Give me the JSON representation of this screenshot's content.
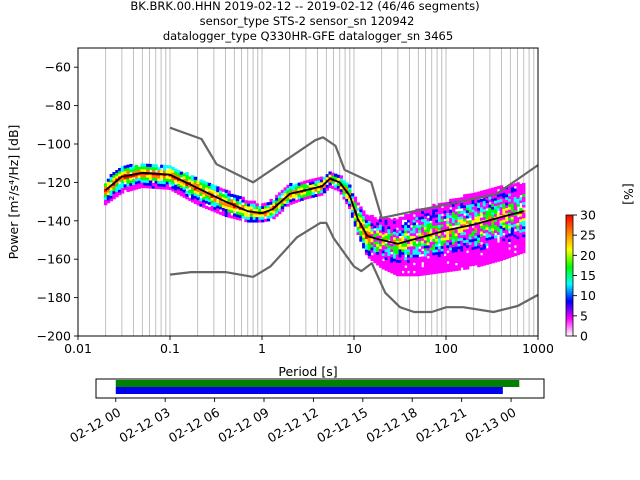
{
  "title": {
    "line1": "BK.BRK.00.HHN   2019-02-12 -- 2019-02-12  (46/46 segments)",
    "line2": "sensor_type STS-2 sensor_sn 120942",
    "line3": "datalogger_type Q330HR-GFE datalogger_sn 3465"
  },
  "chart_data": [
    {
      "type": "heatmap",
      "xscale": "log",
      "xlabel": "Period [s]",
      "ylabel": "Power [m²/s⁴/Hz] [dB]",
      "xlim": [
        0.01,
        1000
      ],
      "ylim": [
        -200,
        -50
      ],
      "xticks": [
        {
          "v": 0.01,
          "label": "0.01"
        },
        {
          "v": 0.1,
          "label": "0.1"
        },
        {
          "v": 1,
          "label": "1"
        },
        {
          "v": 10,
          "label": "10"
        },
        {
          "v": 100,
          "label": "100"
        },
        {
          "v": 1000,
          "label": "1000"
        }
      ],
      "yticks": [
        {
          "v": -60,
          "label": "−60"
        },
        {
          "v": -80,
          "label": "−80"
        },
        {
          "v": -100,
          "label": "−100"
        },
        {
          "v": -120,
          "label": "−120"
        },
        {
          "v": -140,
          "label": "−140"
        },
        {
          "v": -160,
          "label": "−160"
        },
        {
          "v": -180,
          "label": "−180"
        },
        {
          "v": -200,
          "label": "−200"
        }
      ],
      "grid": "vertical-log",
      "colorbar": {
        "label": "[%]",
        "range": [
          0,
          30
        ],
        "ticks": [
          "0",
          "5",
          "10",
          "15",
          "20",
          "25",
          "30"
        ],
        "colors": [
          "#ffffff",
          "#ff00ff",
          "#0000ff",
          "#00ffff",
          "#00ff00",
          "#ffff00",
          "#ff8000",
          "#ff0000"
        ]
      },
      "series": [
        {
          "role": "noise-model-high",
          "color": "#666666",
          "x": [
            0.1,
            0.22,
            0.32,
            0.8,
            3.8,
            4.6,
            6.3,
            7.9,
            15.4,
            20,
            354.8,
            1000
          ],
          "y": [
            -91.5,
            -97.4,
            -110.5,
            -120,
            -98,
            -96.5,
            -101,
            -113.5,
            -120,
            -138.5,
            -126,
            -111
          ]
        },
        {
          "role": "noise-model-low",
          "color": "#666666",
          "x": [
            0.1,
            0.17,
            0.4,
            0.8,
            1.24,
            2.4,
            4.3,
            5,
            6,
            10,
            12,
            15.6,
            21.9,
            31.6,
            45,
            70,
            101,
            154,
            328,
            600,
            1000
          ],
          "y": [
            -168,
            -166.7,
            -166.7,
            -169.2,
            -163.7,
            -148.6,
            -141.1,
            -141.1,
            -149,
            -163.8,
            -166.2,
            -162.1,
            -177.5,
            -185,
            -187.5,
            -187.5,
            -185,
            -185,
            -187.5,
            -184.4,
            -178.6
          ]
        },
        {
          "role": "mode",
          "color": "#000000",
          "x": [
            0.02,
            0.03,
            0.05,
            0.1,
            0.2,
            0.4,
            0.7,
            1.0,
            1.3,
            2,
            3,
            4.5,
            5.5,
            7,
            9,
            11,
            14,
            20,
            30,
            50,
            100,
            200,
            400,
            700
          ],
          "y": [
            -124,
            -117,
            -115,
            -116,
            -123,
            -130,
            -135,
            -136,
            -134,
            -126,
            -124,
            -122,
            -118,
            -120,
            -127,
            -139,
            -148,
            -150,
            -152,
            -149,
            -145,
            -142,
            -138,
            -135
          ]
        }
      ],
      "density_band": {
        "x": [
          0.02,
          0.03,
          0.05,
          0.1,
          0.2,
          0.4,
          0.7,
          1.0,
          1.3,
          2,
          3,
          4.5,
          5.5,
          7,
          9,
          11,
          14,
          20,
          30,
          50,
          100,
          200,
          400,
          700
        ],
        "upper": [
          -119,
          -111,
          -110,
          -111,
          -118,
          -124,
          -129,
          -131,
          -129,
          -121,
          -119,
          -117,
          -115,
          -116,
          -121,
          -130,
          -137,
          -138,
          -139,
          -134,
          -130,
          -125,
          -122,
          -120
        ],
        "lower": [
          -131,
          -125,
          -122,
          -123,
          -131,
          -137,
          -140,
          -140,
          -139,
          -131,
          -128,
          -126,
          -122,
          -124,
          -133,
          -146,
          -158,
          -164,
          -168,
          -168,
          -166,
          -164,
          -160,
          -156
        ]
      }
    },
    {
      "type": "timeline",
      "xlim": [
        "2019-02-12 00:00",
        "2019-02-13 02:00"
      ],
      "xticks": [
        "02-12 00",
        "02-12 03",
        "02-12 06",
        "02-12 09",
        "02-12 12",
        "02-12 15",
        "02-12 18",
        "02-12 21",
        "02-13 00"
      ],
      "bars": [
        {
          "color": "#008000",
          "start": "2019-02-12 00:00",
          "end": "2019-02-13 00:30"
        },
        {
          "color": "#0000ee",
          "start": "2019-02-12 00:00",
          "end": "2019-02-12 23:30"
        }
      ]
    }
  ]
}
